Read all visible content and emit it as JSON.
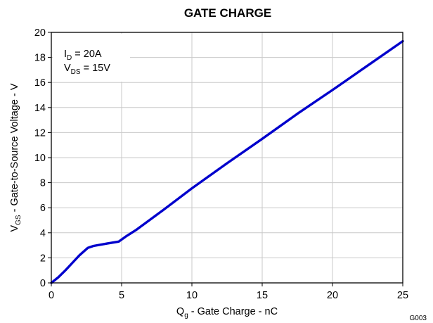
{
  "chart_data": {
    "type": "line",
    "title": "GATE CHARGE",
    "xlabel": {
      "main": "Q",
      "sub": "g",
      "rest": " - Gate Charge - nC"
    },
    "ylabel": {
      "main": "V",
      "sub": "GS",
      "rest": " - Gate-to-Source Voltage - V"
    },
    "xlim": [
      0,
      25
    ],
    "ylim": [
      0,
      20
    ],
    "xticks": [
      0,
      5,
      10,
      15,
      20,
      25
    ],
    "yticks": [
      0,
      2,
      4,
      6,
      8,
      10,
      12,
      14,
      16,
      18,
      20
    ],
    "grid": true,
    "series_color": "#0000cc",
    "series": [
      {
        "x": [
          0,
          0.5,
          1.0,
          1.5,
          2.0,
          2.6,
          3.0,
          4.0,
          4.8,
          5.3,
          6.0,
          8.0,
          10.0,
          12.5,
          15.0,
          17.5,
          20.0,
          22.5,
          25.0
        ],
        "y": [
          0,
          0.45,
          1.0,
          1.6,
          2.2,
          2.8,
          2.95,
          3.15,
          3.3,
          3.7,
          4.2,
          5.85,
          7.55,
          9.55,
          11.5,
          13.5,
          15.4,
          17.35,
          19.3
        ]
      }
    ],
    "annotations": {
      "id": {
        "main": "I",
        "sub": "D",
        "rest": " = 20A"
      },
      "vds": {
        "main": "V",
        "sub": "DS",
        "rest": " = 15V"
      }
    },
    "figure_id": "G003"
  }
}
